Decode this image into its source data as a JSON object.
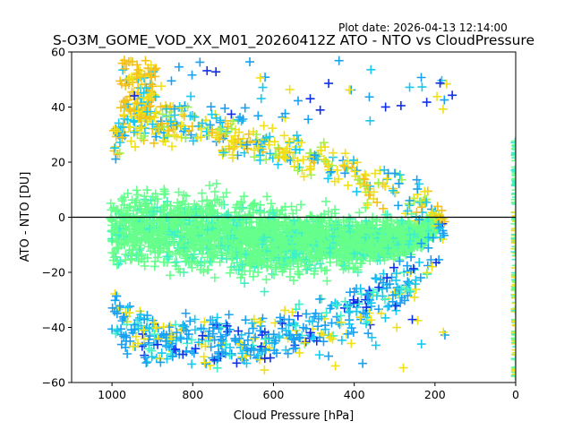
{
  "plot_date": "Plot date: 2026-04-13 12:14:00",
  "chart_data": {
    "type": "scatter",
    "title": "S-O3M_GOME_VOD_XX_M01_20260412Z ATO - NTO vs CloudPressure",
    "xlabel": "Cloud Pressure [hPa]",
    "ylabel": "ATO - NTO [DU]",
    "xlim": [
      1100,
      0
    ],
    "ylim": [
      -60,
      60
    ],
    "xticks": [
      1000,
      800,
      600,
      400,
      200,
      0
    ],
    "yticks": [
      -60,
      -40,
      -20,
      0,
      20,
      40,
      60
    ],
    "reference_line_y": 0,
    "marker": "+",
    "colors": {
      "dense": "#66ff8c",
      "aqua": "#3cf0c8",
      "cyan": "#18c8f0",
      "blue": "#1aa0f0",
      "darkblue": "#1030e8",
      "yellow": "#f0e01a",
      "orange": "#f5c018",
      "lime": "#a0f050",
      "line": "#000000"
    },
    "density_envelope": {
      "pressure_hPa": [
        1000,
        950,
        900,
        850,
        800,
        750,
        700,
        650,
        600,
        550,
        500,
        450,
        400,
        350,
        300,
        250,
        200,
        180
      ],
      "upper_DU": [
        28,
        34,
        35,
        35,
        34,
        33,
        30,
        28,
        26,
        24,
        21,
        19,
        16,
        13,
        10,
        8,
        6,
        2
      ],
      "lower_DU": [
        -40,
        -45,
        -48,
        -48,
        -49,
        -49,
        -49,
        -48,
        -47,
        -45,
        -42,
        -40,
        -38,
        -34,
        -30,
        -26,
        -16,
        -10
      ]
    },
    "edge_column": {
      "pressure_hPa": 0,
      "range_DU": [
        -58,
        28
      ]
    }
  }
}
